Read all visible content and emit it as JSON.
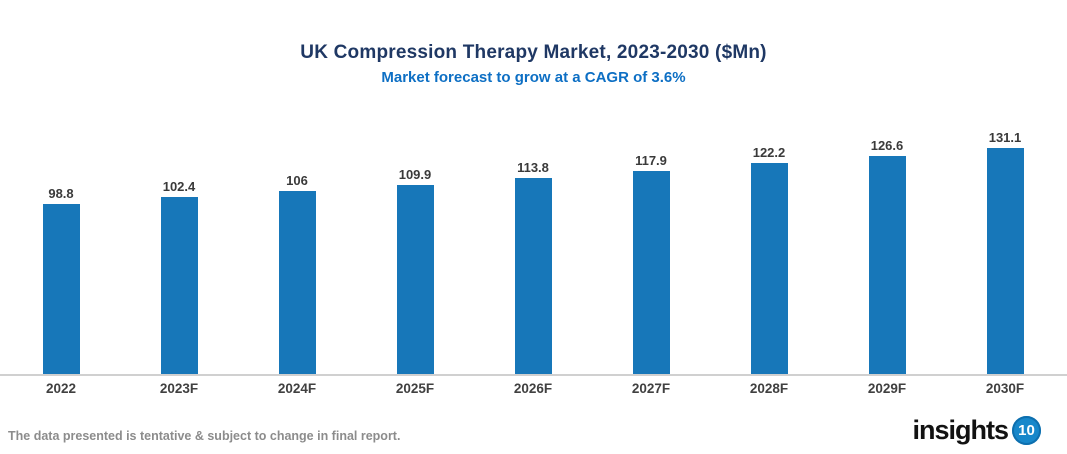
{
  "header": {
    "title": "UK Compression Therapy Market, 2023-2030 ($Mn)",
    "subtitle": "Market forecast to grow at a CAGR of 3.6%"
  },
  "chart_data": {
    "type": "bar",
    "title": "UK Compression Therapy Market, 2023-2030 ($Mn)",
    "subtitle": "Market forecast to grow at a CAGR of 3.6%",
    "categories": [
      "2022",
      "2023F",
      "2024F",
      "2025F",
      "2026F",
      "2027F",
      "2028F",
      "2029F",
      "2030F"
    ],
    "values": [
      98.8,
      102.4,
      106,
      109.9,
      113.8,
      117.9,
      122.2,
      126.6,
      131.1
    ],
    "value_labels": [
      "98.8",
      "102.4",
      "106",
      "109.9",
      "113.8",
      "117.9",
      "122.2",
      "126.6",
      "131.1"
    ],
    "xlabel": "",
    "ylabel": "",
    "ylim": [
      0,
      140
    ],
    "grid": false,
    "legend": false,
    "bar_color": "#1777b9",
    "axis_line_color": "#d0d0d0"
  },
  "footer": {
    "note": "The data presented is tentative & subject to change in final report.",
    "logo_text": "insights",
    "logo_badge": "10"
  },
  "colors": {
    "title": "#1f3864",
    "subtitle": "#0d6fc4",
    "bar": "#1777b9",
    "value_label": "#3a3a3a",
    "x_label": "#404040",
    "footer_note": "#8c8c8c",
    "logo_badge_bg": "#1787ca"
  }
}
